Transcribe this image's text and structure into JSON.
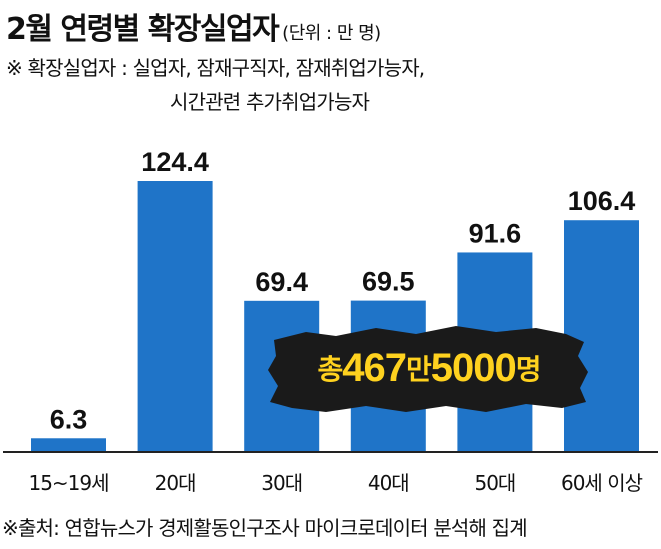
{
  "title": "2월 연령별 확장실업자",
  "unit": "(단위 : 만 명)",
  "note_line1": "※ 확장실업자 : 실업자, 잠재구직자, 잠재취업가능자,",
  "note_line2": "시간관련 추가취업가능자",
  "total_label": {
    "prefix": "총 ",
    "num1": "467",
    "mid": "만",
    "num2": "5000",
    "suffix": "명"
  },
  "source": "※출처:  연합뉴스가 경제활동인구조사 마이크로데이터 분석해 집계",
  "colors": {
    "bar": "#1f74c8",
    "stamp_bg": "#1a1a1a",
    "stamp_text": "#ffd21f"
  },
  "chart_data": {
    "type": "bar",
    "categories": [
      "15~19세",
      "20대",
      "30대",
      "40대",
      "50대",
      "60세 이상"
    ],
    "values": [
      6.3,
      124.4,
      69.4,
      69.5,
      91.6,
      106.4
    ],
    "value_labels": [
      "6.3",
      "124.4",
      "69.4",
      "69.5",
      "91.6",
      "106.4"
    ],
    "title": "2월 연령별 확장실업자",
    "ylim": [
      0,
      124.4
    ],
    "grid": false
  }
}
